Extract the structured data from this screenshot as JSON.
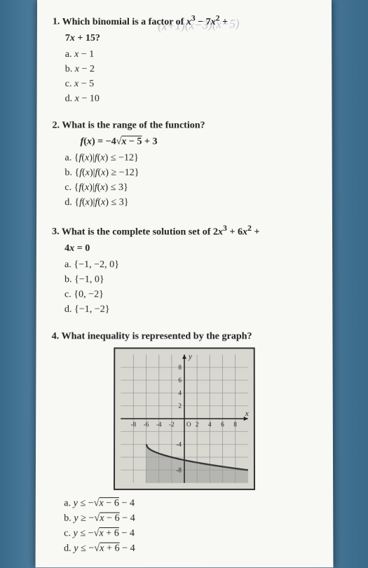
{
  "questions": [
    {
      "number": "1.",
      "stem": "Which binomial is a factor of x³ − 7x² + 7x + 15?",
      "stem_line2": "7x + 15?",
      "options": [
        {
          "label": "a.",
          "text": "x − 1"
        },
        {
          "label": "b.",
          "text": "x − 2"
        },
        {
          "label": "c.",
          "text": "x − 5"
        },
        {
          "label": "d.",
          "text": "x − 10"
        }
      ],
      "handwriting": "(x+1)(x−3)(x−5)"
    },
    {
      "number": "2.",
      "stem": "What is the range of the function?",
      "formula": "f(x) = −4√(x − 5) + 3",
      "options": [
        {
          "label": "a.",
          "text": "{f(x)|f(x) ≤ −12}"
        },
        {
          "label": "b.",
          "text": "{f(x)|f(x) ≥ −12}"
        },
        {
          "label": "c.",
          "text": "{f(x)|f(x) ≤ 3}"
        },
        {
          "label": "d.",
          "text": "{f(x)|f(x) ≤ 3}"
        }
      ]
    },
    {
      "number": "3.",
      "stem": "What is the complete solution set of 2x³ + 6x² + 4x = 0",
      "stem_line2": "4x = 0",
      "options": [
        {
          "label": "a.",
          "text": "{−1, −2, 0}"
        },
        {
          "label": "b.",
          "text": "{−1, 0}"
        },
        {
          "label": "c.",
          "text": "{0, −2}"
        },
        {
          "label": "d.",
          "text": "{−1, −2}"
        }
      ]
    },
    {
      "number": "4.",
      "stem": "What inequality is represented by the graph?",
      "options": [
        {
          "label": "a.",
          "text": "y ≤ −√(x − 6) − 4"
        },
        {
          "label": "b.",
          "text": "y ≥ −√(x − 6) − 4"
        },
        {
          "label": "c.",
          "text": "y ≤ −√(x + 6) − 4"
        },
        {
          "label": "d.",
          "text": "y ≤ −√(x + 6) − 4"
        }
      ]
    }
  ],
  "graph": {
    "background": "#d8d8d0",
    "frame": "#333333",
    "grid": "#888888",
    "axis": "#222222",
    "curve": "#333333",
    "shade": "#999999",
    "x_ticks": [
      "-8",
      "-6",
      "-4",
      "-2",
      "2",
      "4",
      "6",
      "8"
    ],
    "y_ticks": [
      "8",
      "6",
      "4",
      "2",
      "-4",
      "-8"
    ],
    "y_label": "y",
    "x_label": "x",
    "origin_label": "O",
    "xlim": [
      -10,
      10
    ],
    "ylim": [
      -10,
      10
    ],
    "curve_start_sx": 60,
    "curve_start_sy": 130,
    "shade_opacity": 0.55
  }
}
